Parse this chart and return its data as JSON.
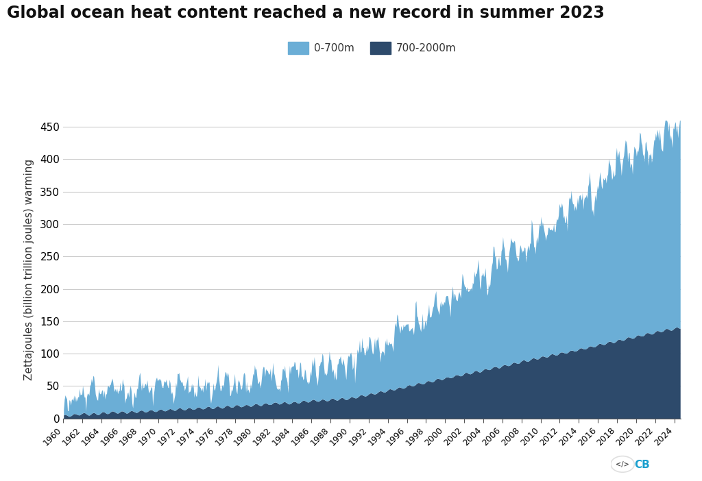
{
  "title": "Global ocean heat content reached a new record in summer 2023",
  "ylabel": "Zettajoules (billion trillion joules) warming",
  "color_shallow": "#6baed6",
  "color_deep": "#2d4a6b",
  "ylim": [
    0,
    460
  ],
  "yticks": [
    0,
    50,
    100,
    150,
    200,
    250,
    300,
    350,
    400,
    450
  ],
  "legend_shallow": "0-700m",
  "legend_deep": "700-2000m",
  "start_year": 1960,
  "end_year": 2024,
  "background_color": "#ffffff",
  "grid_color": "#cccccc",
  "title_fontsize": 17,
  "axis_fontsize": 11,
  "legend_fontsize": 11
}
